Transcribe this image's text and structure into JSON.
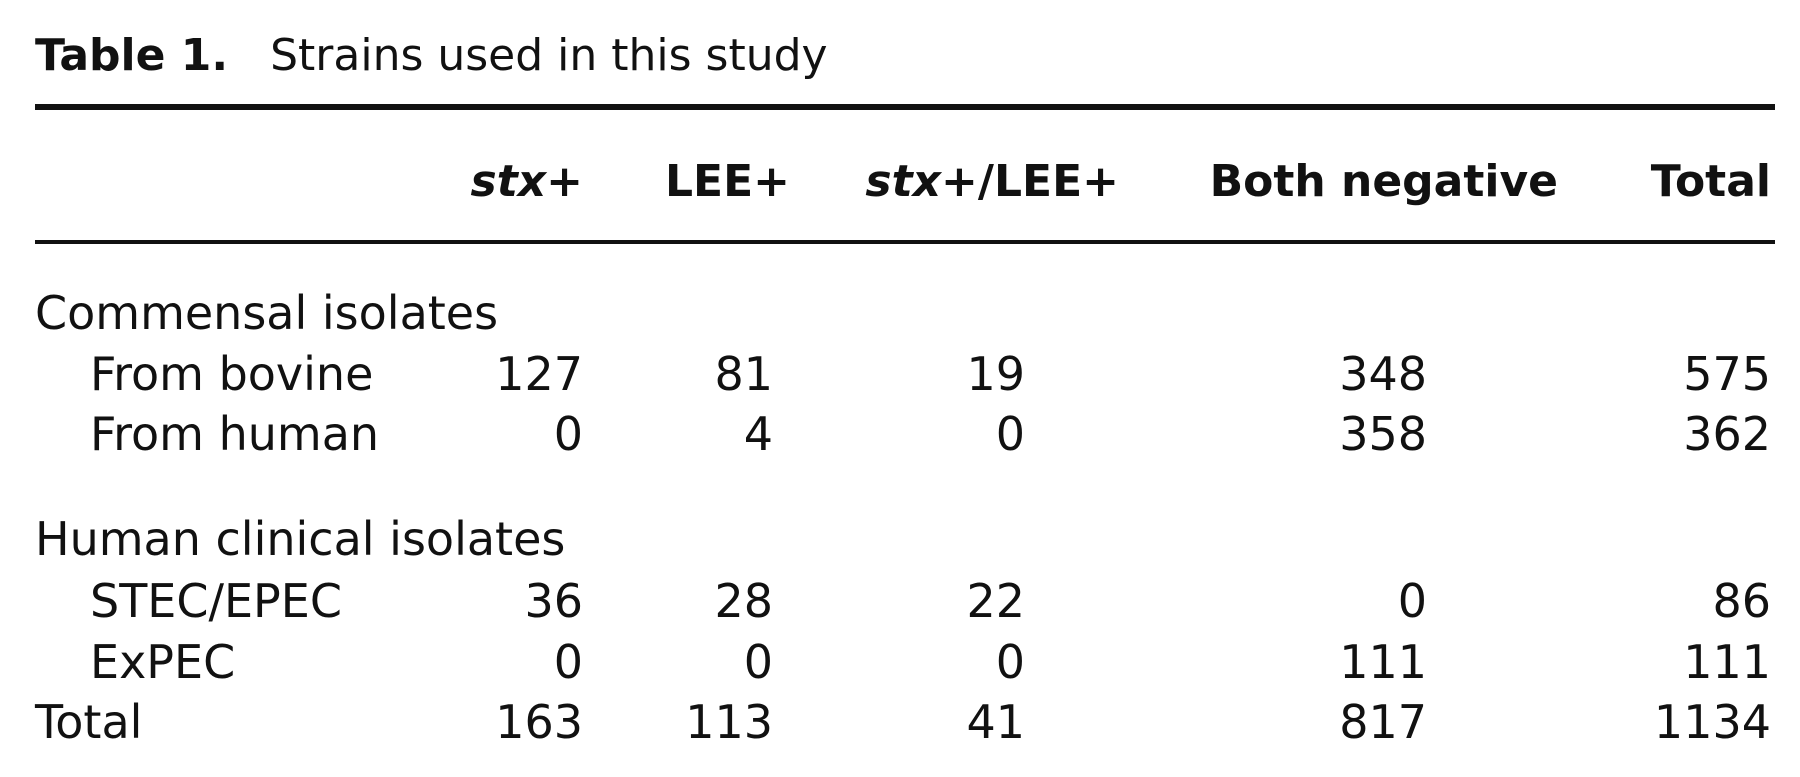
{
  "title": {
    "label": "Table 1.",
    "text": "Strains used in this study"
  },
  "table": {
    "columns": [
      [
        "stx",
        "+"
      ],
      [
        "LEE+"
      ],
      [
        "stx",
        "+/LEE+"
      ],
      [
        "Both negative"
      ],
      [
        "Total"
      ]
    ],
    "sections": [
      {
        "label": "Commensal isolates",
        "rows": [
          {
            "label": "From bovine",
            "values": [
              127,
              81,
              19,
              348,
              575
            ]
          },
          {
            "label": "From human",
            "values": [
              0,
              4,
              0,
              358,
              362
            ]
          }
        ]
      },
      {
        "label": "Human clinical isolates",
        "rows": [
          {
            "label": "STEC/EPEC",
            "values": [
              36,
              28,
              22,
              0,
              86
            ]
          },
          {
            "label": "ExPEC",
            "values": [
              0,
              0,
              0,
              111,
              111
            ]
          }
        ]
      }
    ],
    "total": {
      "label": "Total",
      "values": [
        163,
        113,
        41,
        817,
        1134
      ]
    }
  }
}
